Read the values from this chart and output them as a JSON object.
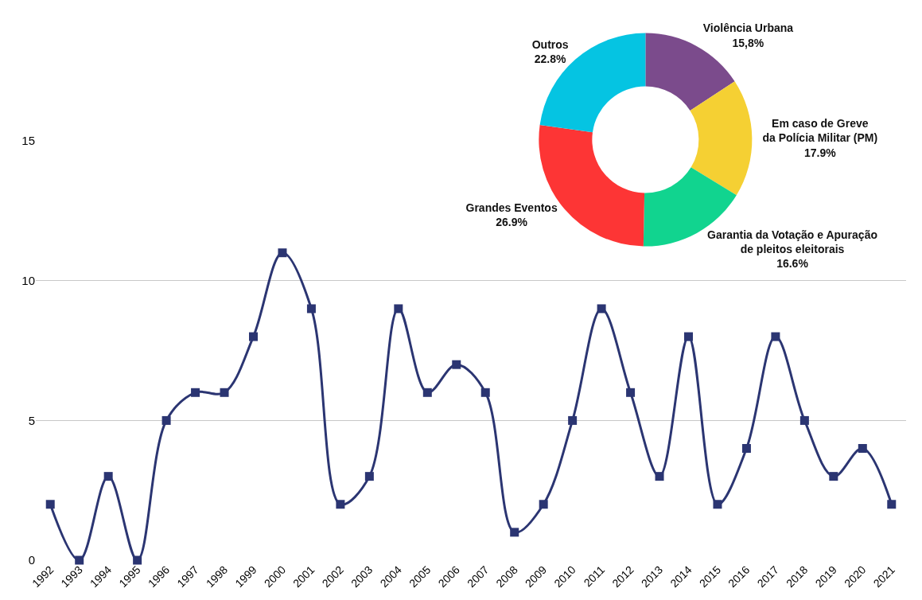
{
  "chart_data": [
    {
      "type": "line",
      "categories": [
        "1992",
        "1993",
        "1994",
        "1995",
        "1996",
        "1997",
        "1998",
        "1999",
        "2000",
        "2001",
        "2002",
        "2003",
        "2004",
        "2005",
        "2006",
        "2007",
        "2008",
        "2009",
        "2010",
        "2011",
        "2012",
        "2013",
        "2014",
        "2015",
        "2016",
        "2017",
        "2018",
        "2019",
        "2020",
        "2021"
      ],
      "series": [
        {
          "color": "#2b3572",
          "values": [
            2,
            0,
            3,
            0,
            5,
            6,
            6,
            8,
            11,
            9,
            2,
            3,
            9,
            6,
            7,
            6,
            1,
            2,
            5,
            9,
            6,
            3,
            8,
            2,
            4,
            8,
            5,
            3,
            4,
            2
          ]
        }
      ],
      "ylim": [
        0,
        15
      ],
      "yticks": [
        0,
        5,
        10,
        15
      ],
      "grid": "y",
      "marker": "square",
      "line_style": "solid"
    },
    {
      "type": "donut",
      "categories": [
        "Violência Urbana",
        "Em caso de Greve\nda Polícia Militar (PM)",
        "Garantia da Votação e Apuração\nde pleitos eleitorais",
        "Grandes Eventos",
        "Outros"
      ],
      "values": [
        15.8,
        17.9,
        16.6,
        26.9,
        22.8
      ],
      "value_labels": [
        "15,8%",
        "17.9%",
        "16.6%",
        "26.9%",
        "22.8%"
      ],
      "colors": [
        "#7b4b8c",
        "#f5d033",
        "#11d48f",
        "#fd3535",
        "#05c4e2"
      ]
    }
  ]
}
